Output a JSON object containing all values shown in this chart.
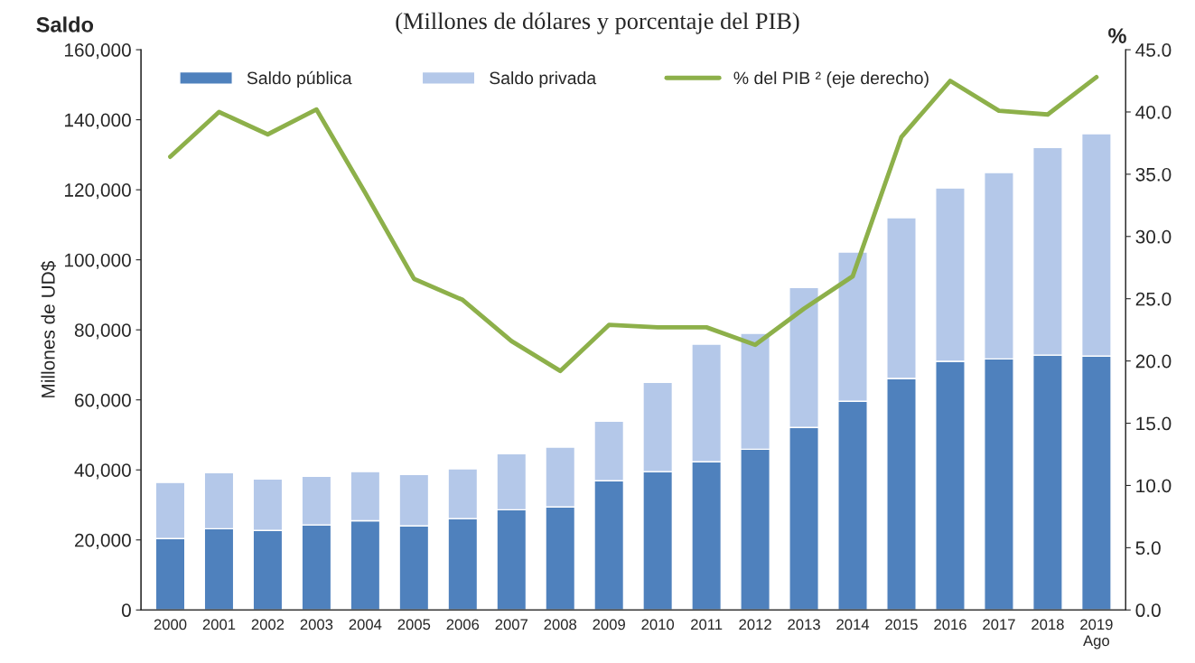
{
  "chart_data": {
    "type": "bar",
    "title": "(Millones de dólares y porcentaje del PIB)",
    "ylabel": "Millones de UD$",
    "y2label": "%",
    "annotations": [
      "Saldo"
    ],
    "categories": [
      "2000",
      "2001",
      "2002",
      "2003",
      "2004",
      "2005",
      "2006",
      "2007",
      "2008",
      "2009",
      "2010",
      "2011",
      "2012",
      "2013",
      "2014",
      "2015",
      "2016",
      "2017",
      "2018",
      "2019\nAgo"
    ],
    "stacked": true,
    "legend": "top",
    "grid": false,
    "ylim": [
      0,
      160000
    ],
    "yticks": [
      {
        "value": 0,
        "label": "0"
      },
      {
        "value": 20000,
        "label": "20,000"
      },
      {
        "value": 40000,
        "label": "40,000"
      },
      {
        "value": 60000,
        "label": "60,000"
      },
      {
        "value": 80000,
        "label": "80,000"
      },
      {
        "value": 100000,
        "label": "100,000"
      },
      {
        "value": 120000,
        "label": "120,000"
      },
      {
        "value": 140000,
        "label": "140,000"
      },
      {
        "value": 160000,
        "label": "160,000"
      }
    ],
    "y2lim": [
      0,
      45
    ],
    "y2ticks": [
      {
        "value": 0,
        "label": "0.0"
      },
      {
        "value": 5,
        "label": "5.0"
      },
      {
        "value": 10,
        "label": "10.0"
      },
      {
        "value": 15,
        "label": "15.0"
      },
      {
        "value": 20,
        "label": "20.0"
      },
      {
        "value": 25,
        "label": "25.0"
      },
      {
        "value": 30,
        "label": "30.0"
      },
      {
        "value": 35,
        "label": "35.0"
      },
      {
        "value": 40,
        "label": "40.0"
      },
      {
        "value": 45,
        "label": "45.0"
      }
    ],
    "series": [
      {
        "name": "Saldo pública",
        "color": "#4f81bd",
        "values": [
          20400,
          23200,
          22700,
          24300,
          25500,
          24000,
          26100,
          28600,
          29400,
          36900,
          39500,
          42300,
          45900,
          52100,
          59600,
          66100,
          71000,
          71700,
          72800,
          72500
        ]
      },
      {
        "name": "Saldo privada",
        "color": "#b4c8e9",
        "values": [
          16000,
          16000,
          14700,
          13900,
          14000,
          14700,
          14200,
          16000,
          17100,
          17000,
          25500,
          33600,
          33100,
          40000,
          42600,
          45900,
          49500,
          53200,
          59300,
          63500
        ]
      },
      {
        "name": "% del PIB ² (eje derecho)",
        "type": "line",
        "axis": "y2",
        "color": "#8db04a",
        "marker": "none",
        "line_style": "solid",
        "values": [
          36.4,
          40.0,
          38.2,
          40.2,
          33.5,
          26.6,
          24.9,
          21.6,
          19.2,
          22.9,
          22.7,
          22.7,
          21.3,
          24.2,
          26.8,
          38.0,
          42.5,
          40.1,
          39.8,
          42.8
        ]
      }
    ]
  }
}
